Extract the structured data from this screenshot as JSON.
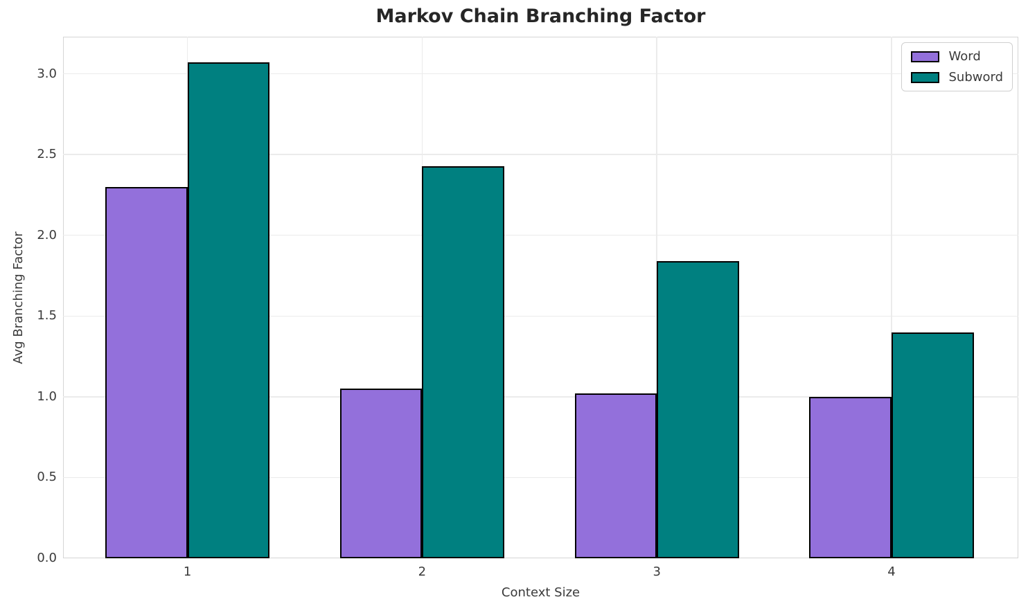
{
  "chart_data": {
    "type": "bar",
    "title": "Markov Chain Branching Factor",
    "xlabel": "Context Size",
    "ylabel": "Avg Branching Factor",
    "categories": [
      "1",
      "2",
      "3",
      "4"
    ],
    "series": [
      {
        "name": "Word",
        "color": "#9370DB",
        "values": [
          2.3,
          1.05,
          1.02,
          1.0
        ]
      },
      {
        "name": "Subword",
        "color": "#008080",
        "values": [
          3.07,
          2.43,
          1.84,
          1.4
        ]
      }
    ],
    "bar_edge_color": "#000000",
    "bar_width_units": 0.35,
    "x_centers": [
      1,
      2,
      3,
      4
    ],
    "xlim": [
      0.47,
      4.54
    ],
    "ylim": [
      0,
      3.23
    ],
    "yticks": [
      0.0,
      0.5,
      1.0,
      1.5,
      2.0,
      2.5,
      3.0
    ],
    "grid": true,
    "legend": {
      "position": "upper-right",
      "labels": [
        "Word",
        "Subword"
      ]
    },
    "colors": {
      "grid": "#ebebeb",
      "spine": "#d5d5d5",
      "tick_text": "#3a3a3a",
      "title_text": "#262626"
    }
  }
}
